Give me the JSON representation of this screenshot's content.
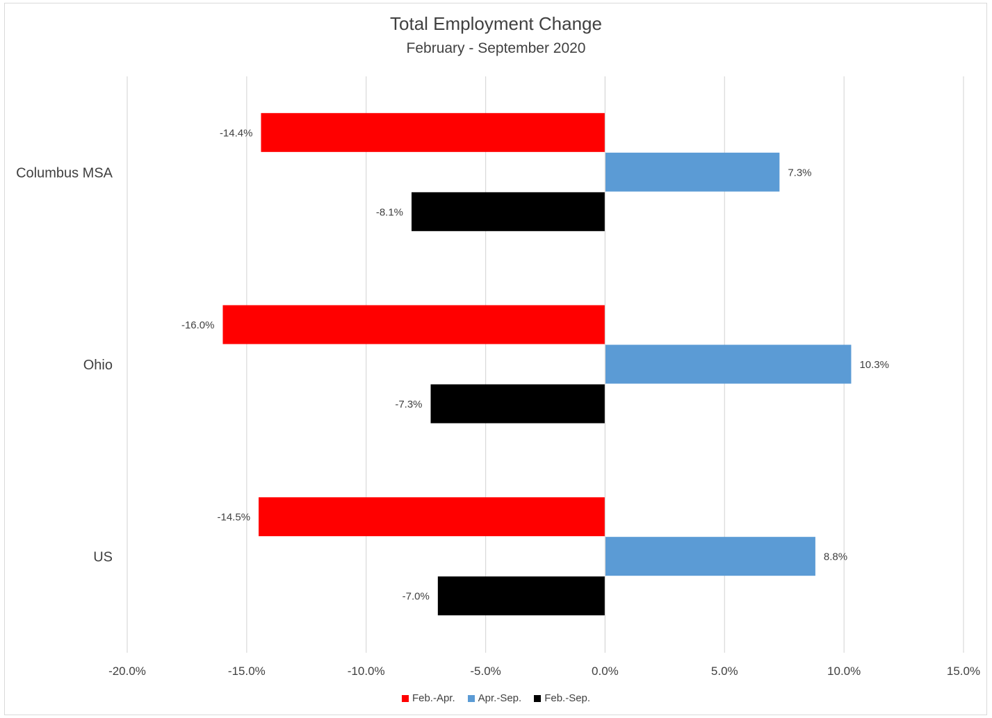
{
  "chart_data": {
    "type": "bar",
    "orientation": "horizontal",
    "title": "Total Employment Change",
    "subtitle": "February - September 2020",
    "categories": [
      "Columbus MSA",
      "Ohio",
      "US"
    ],
    "series": [
      {
        "name": "Feb.-Apr.",
        "color": "#ff0000",
        "values": [
          -14.4,
          -16.0,
          -14.5
        ],
        "labels": [
          "-14.4%",
          "-16.0%",
          "-14.5%"
        ]
      },
      {
        "name": "Apr.-Sep.",
        "color": "#5b9bd5",
        "values": [
          7.3,
          10.3,
          8.8
        ],
        "labels": [
          "7.3%",
          "10.3%",
          "8.8%"
        ]
      },
      {
        "name": "Feb.-Sep.",
        "color": "#000000",
        "values": [
          -8.1,
          -7.3,
          -7.0
        ],
        "labels": [
          "-8.1%",
          "-7.3%",
          "-7.0%"
        ]
      }
    ],
    "xlim": [
      -20,
      15
    ],
    "xticks": [
      -20,
      -15,
      -10,
      -5,
      0,
      5,
      10,
      15
    ],
    "xtick_labels": [
      "-20.0%",
      "-15.0%",
      "-10.0%",
      "-5.0%",
      "0.0%",
      "5.0%",
      "10.0%",
      "15.0%"
    ],
    "grid": true,
    "legend_position": "bottom"
  }
}
